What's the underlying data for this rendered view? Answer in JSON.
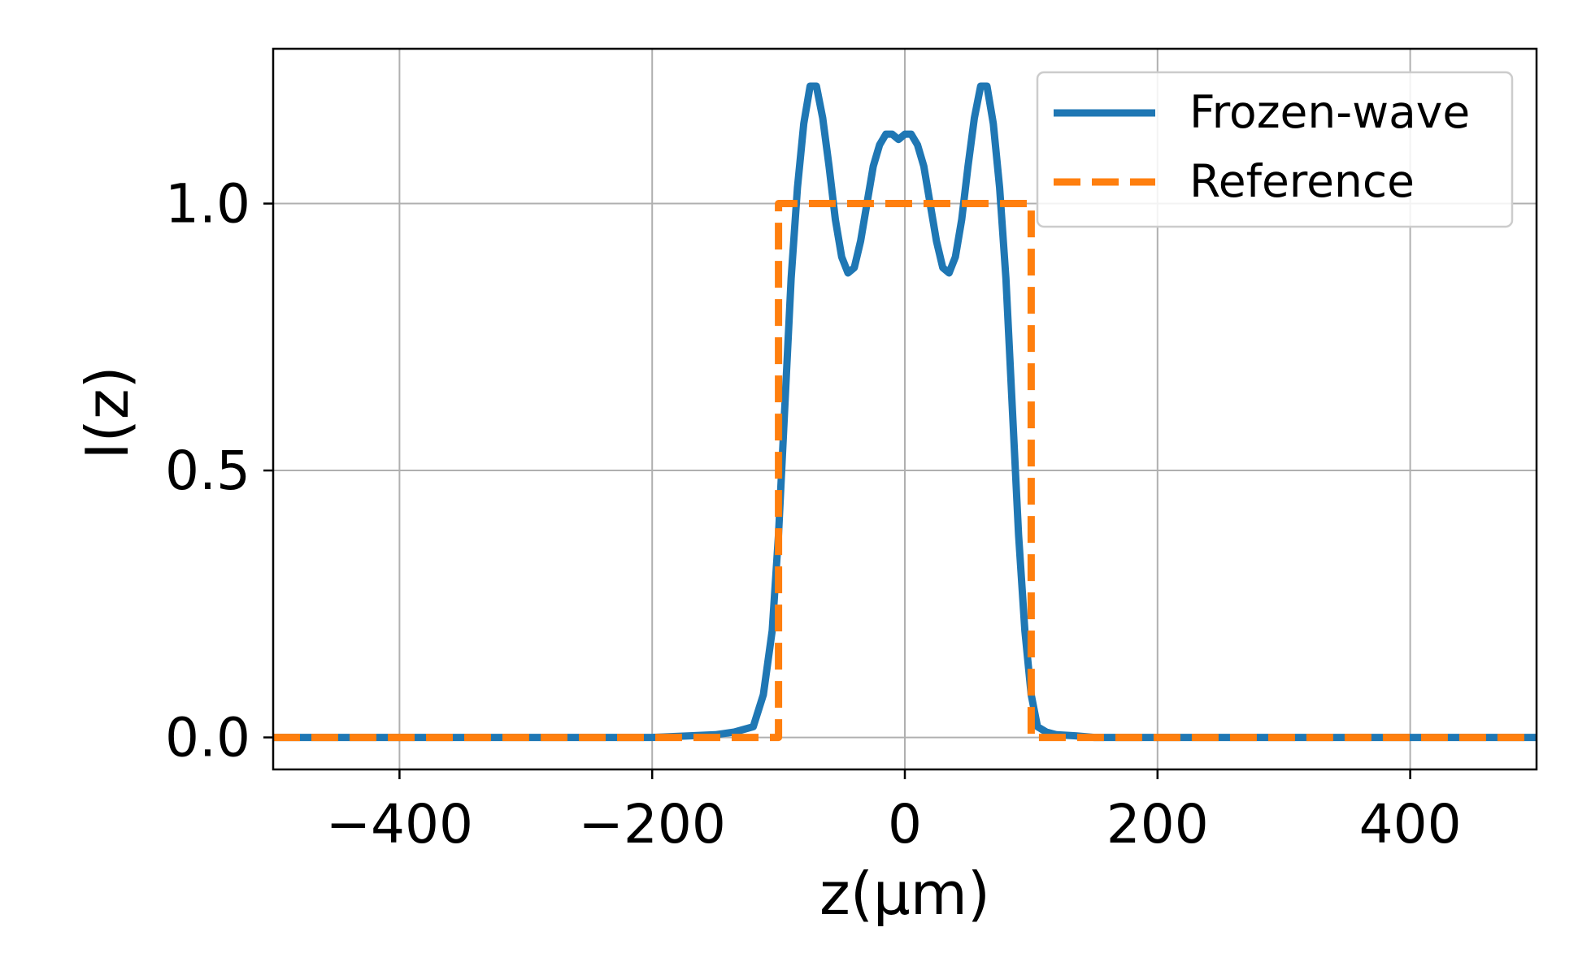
{
  "chart_data": {
    "type": "line",
    "title": "",
    "xlabel": "z(μm)",
    "ylabel": "I(z)",
    "xlim": [
      -500,
      500
    ],
    "ylim": [
      -0.06,
      1.29
    ],
    "xticks": [
      -400,
      -200,
      0,
      200,
      400
    ],
    "yticks": [
      0.0,
      0.5,
      1.0
    ],
    "xtick_labels": [
      "−400",
      "−200",
      "0",
      "200",
      "400"
    ],
    "ytick_labels": [
      "0.0",
      "0.5",
      "1.0"
    ],
    "grid": true,
    "legend_position": "top-right",
    "series": [
      {
        "name": "Frozen-wave",
        "color": "#1f77b4",
        "style": "solid",
        "x": [
          -500,
          -400,
          -300,
          -200,
          -170,
          -150,
          -135,
          -120,
          -112,
          -105,
          -100,
          -95,
          -90,
          -85,
          -80,
          -75,
          -70,
          -65,
          -60,
          -55,
          -50,
          -45,
          -40,
          -35,
          -30,
          -25,
          -20,
          -15,
          -10,
          -5,
          0,
          5,
          10,
          15,
          20,
          25,
          30,
          35,
          40,
          45,
          50,
          55,
          60,
          65,
          70,
          75,
          80,
          85,
          90,
          95,
          100,
          105,
          112,
          120,
          135,
          150,
          170,
          200,
          300,
          400,
          500
        ],
        "y": [
          0.0,
          0.0,
          0.0,
          0.0,
          0.003,
          0.005,
          0.01,
          0.02,
          0.08,
          0.2,
          0.38,
          0.62,
          0.86,
          1.03,
          1.15,
          1.22,
          1.22,
          1.16,
          1.07,
          0.97,
          0.9,
          0.87,
          0.88,
          0.93,
          1.0,
          1.07,
          1.11,
          1.13,
          1.13,
          1.12,
          1.13,
          1.13,
          1.11,
          1.07,
          1.0,
          0.93,
          0.88,
          0.87,
          0.9,
          0.97,
          1.07,
          1.16,
          1.22,
          1.22,
          1.15,
          1.03,
          0.86,
          0.62,
          0.38,
          0.2,
          0.08,
          0.02,
          0.01,
          0.005,
          0.003,
          0.0,
          0.0,
          0.0,
          0.0,
          0.0,
          0.0
        ]
      },
      {
        "name": "Reference",
        "color": "#ff7f0e",
        "style": "dashed",
        "x": [
          -500,
          -100,
          -100,
          100,
          100,
          500
        ],
        "y": [
          0.0,
          0.0,
          1.0,
          1.0,
          0.0,
          0.0
        ]
      }
    ]
  }
}
